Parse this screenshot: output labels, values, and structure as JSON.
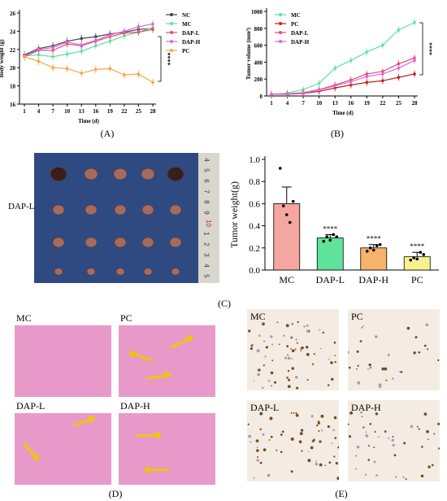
{
  "figure": {
    "captions": {
      "A": "(A)",
      "B": "(B)",
      "C": "(C)",
      "D": "(D)",
      "E": "(E)"
    }
  },
  "chart_data": [
    {
      "type": "line",
      "id": "A",
      "xlabel": "Time (d)",
      "ylabel": "Body weight (g)",
      "ylim": [
        16,
        26
      ],
      "yticks": [
        16,
        18,
        20,
        22,
        24,
        26
      ],
      "x": [
        1,
        4,
        7,
        10,
        13,
        16,
        19,
        22,
        25,
        28
      ],
      "significance": "****",
      "legend_position": "right",
      "series": [
        {
          "name": "NC",
          "color": "#444444",
          "values": [
            21.4,
            22.1,
            22.4,
            22.9,
            23.2,
            23.4,
            23.7,
            23.9,
            24.2,
            24.3
          ]
        },
        {
          "name": "MC",
          "color": "#5fe39a",
          "values": [
            21.3,
            21.4,
            21.2,
            21.5,
            21.8,
            22.4,
            22.9,
            23.5,
            23.9,
            24.4
          ]
        },
        {
          "name": "DAP-L",
          "color": "#e74c6a",
          "values": [
            21.2,
            21.9,
            21.9,
            22.6,
            22.4,
            22.9,
            23.4,
            23.8,
            23.9,
            24.2
          ]
        },
        {
          "name": "DAP-H",
          "color": "#d46bdc",
          "values": [
            21.3,
            22.0,
            22.2,
            22.8,
            22.5,
            23.0,
            23.6,
            24.0,
            24.5,
            24.8
          ]
        },
        {
          "name": "PC",
          "color": "#f0a742",
          "values": [
            21.2,
            20.7,
            20.0,
            19.9,
            19.4,
            19.8,
            19.9,
            19.2,
            19.3,
            18.4
          ]
        }
      ]
    },
    {
      "type": "line",
      "id": "B",
      "xlabel": "Time (d)",
      "ylabel": "Tumor volume (mm³)",
      "ylim": [
        0,
        1000
      ],
      "yticks": [
        0,
        200,
        400,
        600,
        800,
        1000
      ],
      "x": [
        1,
        4,
        7,
        10,
        13,
        16,
        19,
        22,
        25,
        28
      ],
      "significance": "****",
      "legend_position": "top-left",
      "series": [
        {
          "name": "MC",
          "color": "#5fe39a",
          "values": [
            20,
            35,
            75,
            150,
            330,
            420,
            520,
            600,
            780,
            870
          ]
        },
        {
          "name": "PC",
          "color": "#c0201e",
          "values": [
            20,
            20,
            30,
            55,
            95,
            130,
            160,
            180,
            220,
            260
          ]
        },
        {
          "name": "DAP-L",
          "color": "#e74c6a",
          "values": [
            20,
            25,
            40,
            75,
            130,
            190,
            260,
            290,
            380,
            450
          ]
        },
        {
          "name": "DAP-H",
          "color": "#d46bdc",
          "values": [
            20,
            22,
            35,
            70,
            120,
            170,
            230,
            260,
            330,
            420
          ]
        }
      ]
    },
    {
      "type": "bar",
      "id": "C",
      "ylabel": "Tumor weight(g)",
      "ylim": [
        0,
        1.0
      ],
      "yticks": [
        "0.0",
        "0.2",
        "0.4",
        "0.6",
        "0.8",
        "1.0"
      ],
      "categories": [
        "MC",
        "DAP-L",
        "DAP-H",
        "PC"
      ],
      "values": [
        0.6,
        0.29,
        0.2,
        0.12
      ],
      "errors": [
        0.15,
        0.03,
        0.03,
        0.04
      ],
      "colors": [
        "#f4a6a0",
        "#5fe39a",
        "#f5b36b",
        "#f7f28f"
      ],
      "significance": [
        "",
        "****",
        "****",
        "****"
      ],
      "points": [
        [
          0.92,
          0.58,
          0.5,
          0.43,
          0.62
        ],
        [
          0.26,
          0.3,
          0.27,
          0.32,
          0.3
        ],
        [
          0.17,
          0.2,
          0.18,
          0.22,
          0.23
        ],
        [
          0.09,
          0.11,
          0.1,
          0.16,
          0.14
        ]
      ]
    }
  ],
  "photo": {
    "row_label": "DAP-L",
    "ruler_numbers": [
      "4",
      "5",
      "6",
      "7",
      "8",
      "9",
      "10",
      "1",
      "2",
      "3",
      "4",
      "5"
    ]
  },
  "histology": {
    "he": [
      "MC",
      "PC",
      "DAP-L",
      "DAP-H"
    ],
    "ihc": [
      "MC",
      "PC",
      "DAP-L",
      "DAP-H"
    ]
  },
  "colors": {
    "he_pink": "#e79ac9",
    "ihc_bg": "#f4ece2",
    "arrow": "#f5c400",
    "photo_bg": "#2e4a80"
  }
}
